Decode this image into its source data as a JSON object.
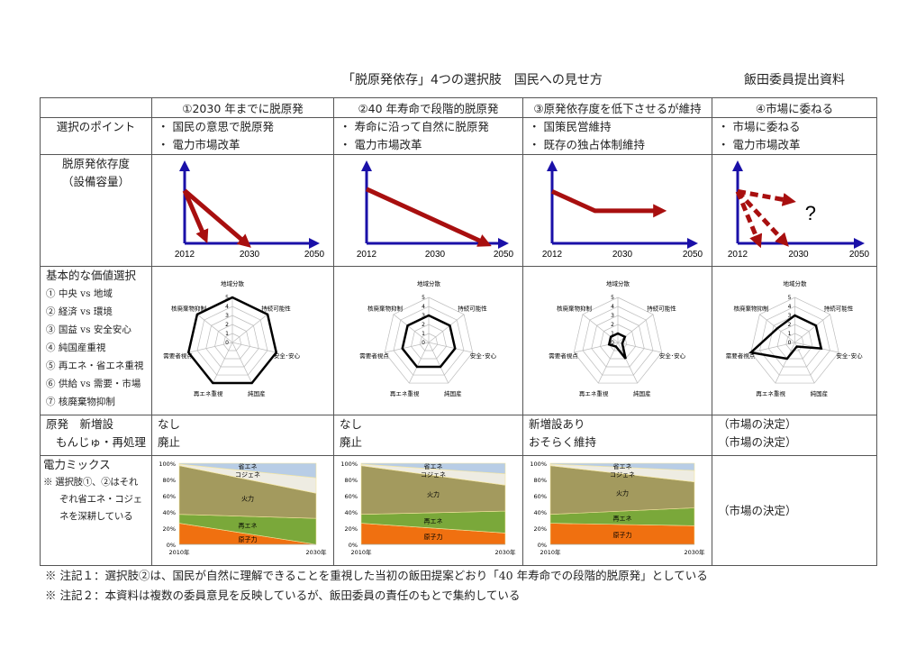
{
  "title": "「脱原発依存」4つの選択肢　国民への見せ方",
  "subtitle": "飯田委員提出資料",
  "columns": [
    "①2030 年までに脱原発",
    "②40 年寿命で段階的脱原発",
    "③原発依存度を低下させるが維持",
    "④市場に委ねる"
  ],
  "rows": {
    "points": {
      "label": "選択のポイント",
      "cells": [
        [
          "・ 国民の意思で脱原発",
          "・ 電力市場改革"
        ],
        [
          "・ 寿命に沿って自然に脱原発",
          "・ 電力市場改革"
        ],
        [
          "・ 国策民営維持",
          "・ 既存の独占体制維持"
        ],
        [
          "・ 市場に委ねる",
          "・ 電力市場改革"
        ]
      ]
    },
    "dependency": {
      "label": "脱原発依存度",
      "label2": "（設備容量）",
      "x_ticks": [
        "2012",
        "2030",
        "2050"
      ],
      "question": "?",
      "colors": {
        "axis": "#1a10a8",
        "arrow": "#a80f0f"
      }
    },
    "values": {
      "label": "基本的な価値選択",
      "items": [
        "① 中央 vs 地域",
        "② 経済 vs 環境",
        "③ 国益 vs 安全安心",
        "④ 純国産重視",
        "⑤ 再エネ・省エネ重視",
        "⑥ 供給 vs 需要・市場",
        "⑦ 核廃棄物抑制"
      ]
    },
    "nuclear": {
      "label": "原発　新増設",
      "label2": "もんじゅ・再処理",
      "cells": [
        [
          "なし",
          "廃止"
        ],
        [
          "なし",
          "廃止"
        ],
        [
          "新増設あり",
          "おそらく維持"
        ],
        [
          "（市場の決定）",
          "（市場の決定）"
        ]
      ]
    },
    "mix": {
      "label": "電力ミックス",
      "note": [
        "※ 選択肢①、②はそれ",
        "ぞれ省エネ・コジェ",
        "ネを深耕している"
      ],
      "col4": "（市場の決定）"
    }
  },
  "chart_data": [
    {
      "type": "radar",
      "axes": [
        "地域分散",
        "持続可能性",
        "安全･安心",
        "純国産",
        "再エネ重視",
        "需要者視点",
        "核廃棄物抑制"
      ],
      "range": [
        0,
        5
      ],
      "ticks": [
        "0",
        "1",
        "2",
        "3",
        "4",
        "5"
      ],
      "values": [
        5,
        5,
        5,
        5,
        5,
        5,
        5
      ]
    },
    {
      "type": "radar",
      "axes": [
        "地域分散",
        "持続可能性",
        "安全･安心",
        "純国産",
        "再エネ重視",
        "需要者視点",
        "核廃棄物抑制"
      ],
      "range": [
        0,
        5
      ],
      "ticks": [
        "0",
        "1",
        "2",
        "3",
        "4",
        "5"
      ],
      "values": [
        3,
        3,
        3,
        3,
        3,
        3,
        3
      ]
    },
    {
      "type": "radar",
      "axes": [
        "地域分散",
        "持続可能性",
        "安全･安心",
        "純国産",
        "再エネ重視",
        "需要者視点",
        "核廃棄物抑制"
      ],
      "range": [
        0,
        5
      ],
      "ticks": [
        "0",
        "1",
        "2",
        "3",
        "4",
        "5"
      ],
      "values": [
        1,
        1,
        0.5,
        2,
        0.5,
        1,
        1
      ]
    },
    {
      "type": "radar",
      "axes": [
        "地域分散",
        "持続可能性",
        "安全･安心",
        "純国産",
        "再エネ重視",
        "需要者視点",
        "核廃棄物抑制"
      ],
      "range": [
        0,
        5
      ],
      "ticks": [
        "0",
        "1",
        "2",
        "3",
        "4",
        "5"
      ],
      "values": [
        3,
        3,
        3,
        0.5,
        2,
        5,
        2.5
      ]
    },
    {
      "type": "area",
      "stacked": true,
      "x": [
        "2010年",
        "2030年"
      ],
      "y_ticks": [
        "0%",
        "20%",
        "40%",
        "60%",
        "80%",
        "100%"
      ],
      "series": [
        {
          "name": "原子力",
          "values": [
            26,
            0
          ],
          "color": "#f07010"
        },
        {
          "name": "再エネ",
          "values": [
            11,
            32
          ],
          "color": "#7aa83a"
        },
        {
          "name": "火力",
          "values": [
            60,
            31
          ],
          "color": "#a39a5e"
        },
        {
          "name": "コジェネ",
          "values": [
            2,
            19
          ],
          "color": "#eeece2"
        },
        {
          "name": "省エネ",
          "values": [
            1,
            18
          ],
          "color": "#b8cde6"
        }
      ]
    },
    {
      "type": "area",
      "stacked": true,
      "x": [
        "2010年",
        "2030年"
      ],
      "y_ticks": [
        "0%",
        "20%",
        "40%",
        "60%",
        "80%",
        "100%"
      ],
      "series": [
        {
          "name": "原子力",
          "values": [
            26,
            14
          ],
          "color": "#f07010"
        },
        {
          "name": "再エネ",
          "values": [
            11,
            27
          ],
          "color": "#7aa83a"
        },
        {
          "name": "火力",
          "values": [
            60,
            32
          ],
          "color": "#a39a5e"
        },
        {
          "name": "コジェネ",
          "values": [
            2,
            14
          ],
          "color": "#eeece2"
        },
        {
          "name": "省エネ",
          "values": [
            1,
            13
          ],
          "color": "#b8cde6"
        }
      ]
    },
    {
      "type": "area",
      "stacked": true,
      "x": [
        "2010年",
        "2030年"
      ],
      "y_ticks": [
        "0%",
        "20%",
        "40%",
        "60%",
        "80%",
        "100%"
      ],
      "series": [
        {
          "name": "原子力",
          "values": [
            26,
            23
          ],
          "color": "#f07010"
        },
        {
          "name": "再エネ",
          "values": [
            11,
            22
          ],
          "color": "#7aa83a"
        },
        {
          "name": "火力",
          "values": [
            60,
            32
          ],
          "color": "#a39a5e"
        },
        {
          "name": "コジェネ",
          "values": [
            2,
            14
          ],
          "color": "#eeece2"
        },
        {
          "name": "省エネ",
          "values": [
            1,
            9
          ],
          "color": "#b8cde6"
        }
      ]
    }
  ],
  "notes": [
    "※ 注記１：選択肢②は、国民が自然に理解できることを重視した当初の飯田提案どおり「40 年寿命での段階的脱原発」としている",
    "※ 注記２：本資料は複数の委員意見を反映しているが、飯田委員の責任のもとで集約している"
  ]
}
